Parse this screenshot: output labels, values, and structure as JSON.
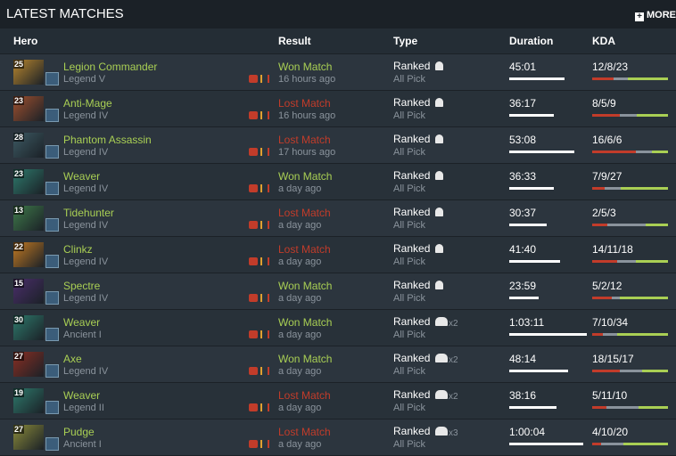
{
  "header": {
    "title": "LATEST MATCHES",
    "more": "MORE"
  },
  "table": {
    "columns": [
      "Hero",
      "Result",
      "Type",
      "Duration",
      "KDA"
    ],
    "rows": [
      {
        "level": "25",
        "hero": "Legion Commander",
        "rank": "Legend V",
        "result": "Won Match",
        "result_color": "#a9cf54",
        "ago": "16 hours ago",
        "type": "Ranked",
        "party": null,
        "mode": "All Pick",
        "duration": "45:01",
        "kda": "12/8/23",
        "icon_color": "#b8862e"
      },
      {
        "level": "23",
        "hero": "Anti-Mage",
        "rank": "Legend IV",
        "result": "Lost Match",
        "result_color": "#c23c2a",
        "ago": "16 hours ago",
        "type": "Ranked",
        "party": null,
        "mode": "All Pick",
        "duration": "36:17",
        "kda": "8/5/9",
        "icon_color": "#a0502e"
      },
      {
        "level": "28",
        "hero": "Phantom Assassin",
        "rank": "Legend IV",
        "result": "Lost Match",
        "result_color": "#c23c2a",
        "ago": "17 hours ago",
        "type": "Ranked",
        "party": null,
        "mode": "All Pick",
        "duration": "53:08",
        "kda": "16/6/6",
        "icon_color": "#3d5a63"
      },
      {
        "level": "23",
        "hero": "Weaver",
        "rank": "Legend IV",
        "result": "Won Match",
        "result_color": "#a9cf54",
        "ago": "a day ago",
        "type": "Ranked",
        "party": null,
        "mode": "All Pick",
        "duration": "36:33",
        "kda": "7/9/27",
        "icon_color": "#2e7a6c"
      },
      {
        "level": "13",
        "hero": "Tidehunter",
        "rank": "Legend IV",
        "result": "Lost Match",
        "result_color": "#c23c2a",
        "ago": "a day ago",
        "type": "Ranked",
        "party": null,
        "mode": "All Pick",
        "duration": "30:37",
        "kda": "2/5/3",
        "icon_color": "#3f7a4a"
      },
      {
        "level": "22",
        "hero": "Clinkz",
        "rank": "Legend IV",
        "result": "Lost Match",
        "result_color": "#c23c2a",
        "ago": "a day ago",
        "type": "Ranked",
        "party": null,
        "mode": "All Pick",
        "duration": "41:40",
        "kda": "14/11/18",
        "icon_color": "#c47a22"
      },
      {
        "level": "15",
        "hero": "Spectre",
        "rank": "Legend IV",
        "result": "Won Match",
        "result_color": "#a9cf54",
        "ago": "a day ago",
        "type": "Ranked",
        "party": null,
        "mode": "All Pick",
        "duration": "23:59",
        "kda": "5/2/12",
        "icon_color": "#4a2e6a"
      },
      {
        "level": "30",
        "hero": "Weaver",
        "rank": "Ancient I",
        "result": "Won Match",
        "result_color": "#a9cf54",
        "ago": "a day ago",
        "type": "Ranked",
        "party": "x2",
        "mode": "All Pick",
        "duration": "1:03:11",
        "kda": "7/10/34",
        "icon_color": "#2e7a6c"
      },
      {
        "level": "27",
        "hero": "Axe",
        "rank": "Legend IV",
        "result": "Won Match",
        "result_color": "#a9cf54",
        "ago": "a day ago",
        "type": "Ranked",
        "party": "x2",
        "mode": "All Pick",
        "duration": "48:14",
        "kda": "18/15/17",
        "icon_color": "#8a2e22"
      },
      {
        "level": "19",
        "hero": "Weaver",
        "rank": "Legend II",
        "result": "Lost Match",
        "result_color": "#c23c2a",
        "ago": "a day ago",
        "type": "Ranked",
        "party": "x2",
        "mode": "All Pick",
        "duration": "38:16",
        "kda": "5/11/10",
        "icon_color": "#2e7a6c"
      },
      {
        "level": "27",
        "hero": "Pudge",
        "rank": "Ancient I",
        "result": "Lost Match",
        "result_color": "#c23c2a",
        "ago": "a day ago",
        "type": "Ranked",
        "party": "x3",
        "mode": "All Pick",
        "duration": "1:00:04",
        "kda": "4/10/20",
        "icon_color": "#8a8a3a"
      }
    ]
  }
}
